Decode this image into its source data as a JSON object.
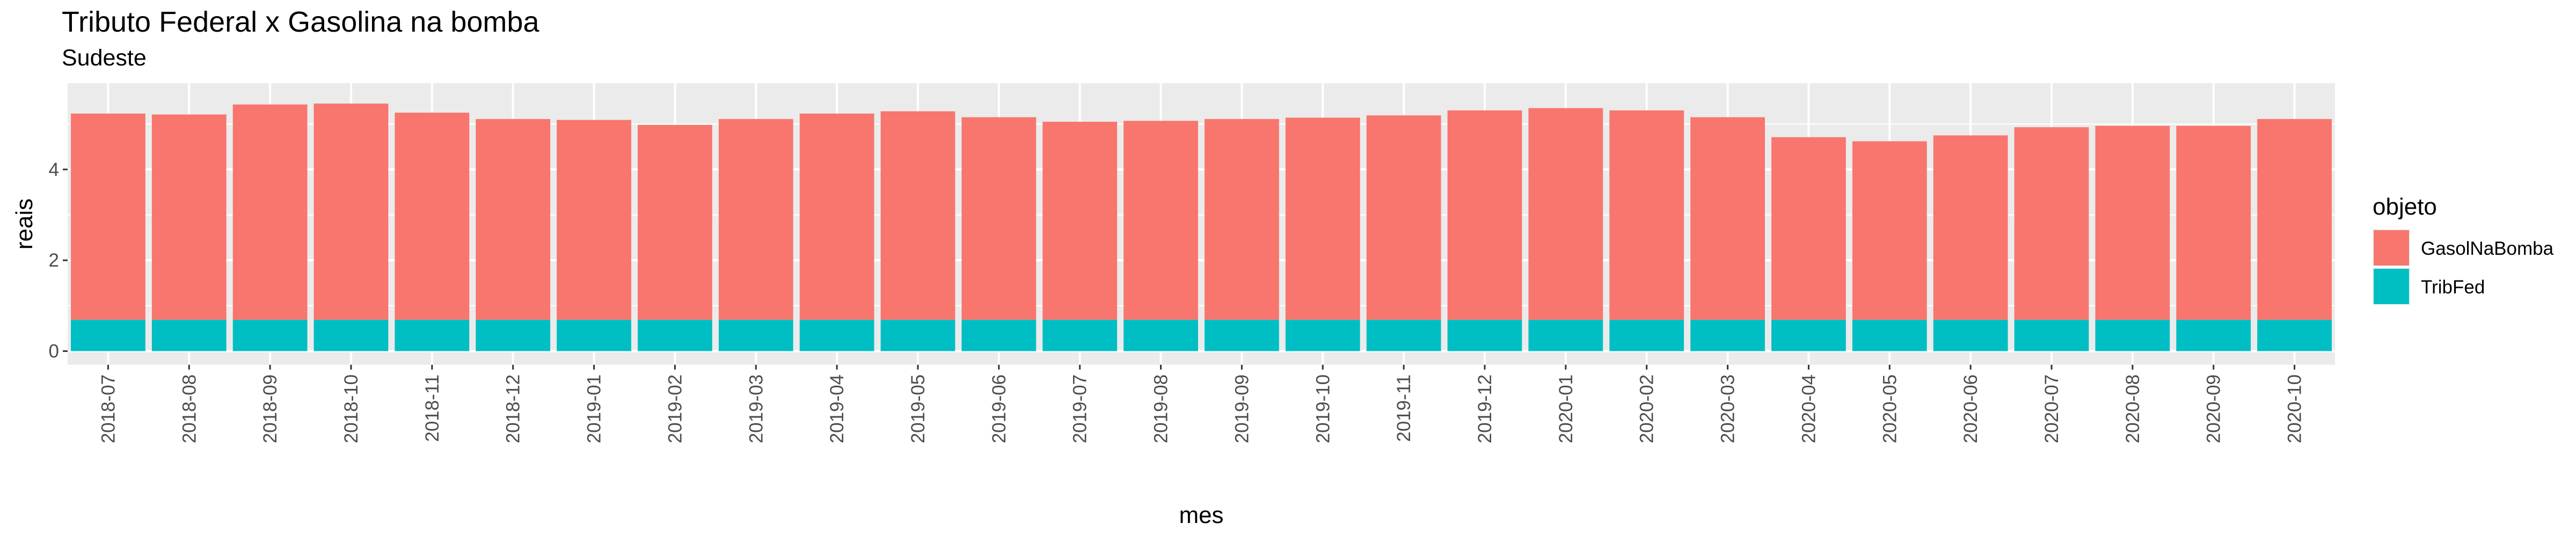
{
  "chart_data": {
    "type": "bar",
    "stacked": true,
    "title": "Tributo Federal x Gasolina na bomba",
    "subtitle": "Sudeste",
    "xlabel": "mes",
    "ylabel": "reais",
    "ylim": [
      -0.3,
      5.9
    ],
    "yticks": [
      0,
      2,
      4
    ],
    "grid": true,
    "legend": {
      "title": "objeto",
      "position": "right"
    },
    "categories": [
      "2018-07",
      "2018-08",
      "2018-09",
      "2018-10",
      "2018-11",
      "2018-12",
      "2019-01",
      "2019-02",
      "2019-03",
      "2019-04",
      "2019-05",
      "2019-06",
      "2019-07",
      "2019-08",
      "2019-09",
      "2019-10",
      "2019-11",
      "2019-12",
      "2020-01",
      "2020-02",
      "2020-03",
      "2020-04",
      "2020-05",
      "2020-06",
      "2020-07",
      "2020-08",
      "2020-09",
      "2020-10"
    ],
    "series": [
      {
        "name": "GasolNaBomba",
        "color": "#F8766D",
        "values": [
          4.54,
          4.52,
          4.74,
          4.76,
          4.56,
          4.42,
          4.4,
          4.29,
          4.42,
          4.54,
          4.59,
          4.46,
          4.36,
          4.38,
          4.42,
          4.45,
          4.5,
          4.61,
          4.66,
          4.61,
          4.46,
          4.02,
          3.93,
          4.06,
          4.24,
          4.27,
          4.27,
          4.42
        ]
      },
      {
        "name": "TribFed",
        "color": "#00BFC4",
        "values": [
          0.69,
          0.69,
          0.69,
          0.69,
          0.69,
          0.69,
          0.69,
          0.69,
          0.69,
          0.69,
          0.69,
          0.69,
          0.69,
          0.69,
          0.69,
          0.69,
          0.69,
          0.69,
          0.69,
          0.69,
          0.69,
          0.69,
          0.69,
          0.69,
          0.69,
          0.69,
          0.69,
          0.69
        ]
      }
    ]
  }
}
